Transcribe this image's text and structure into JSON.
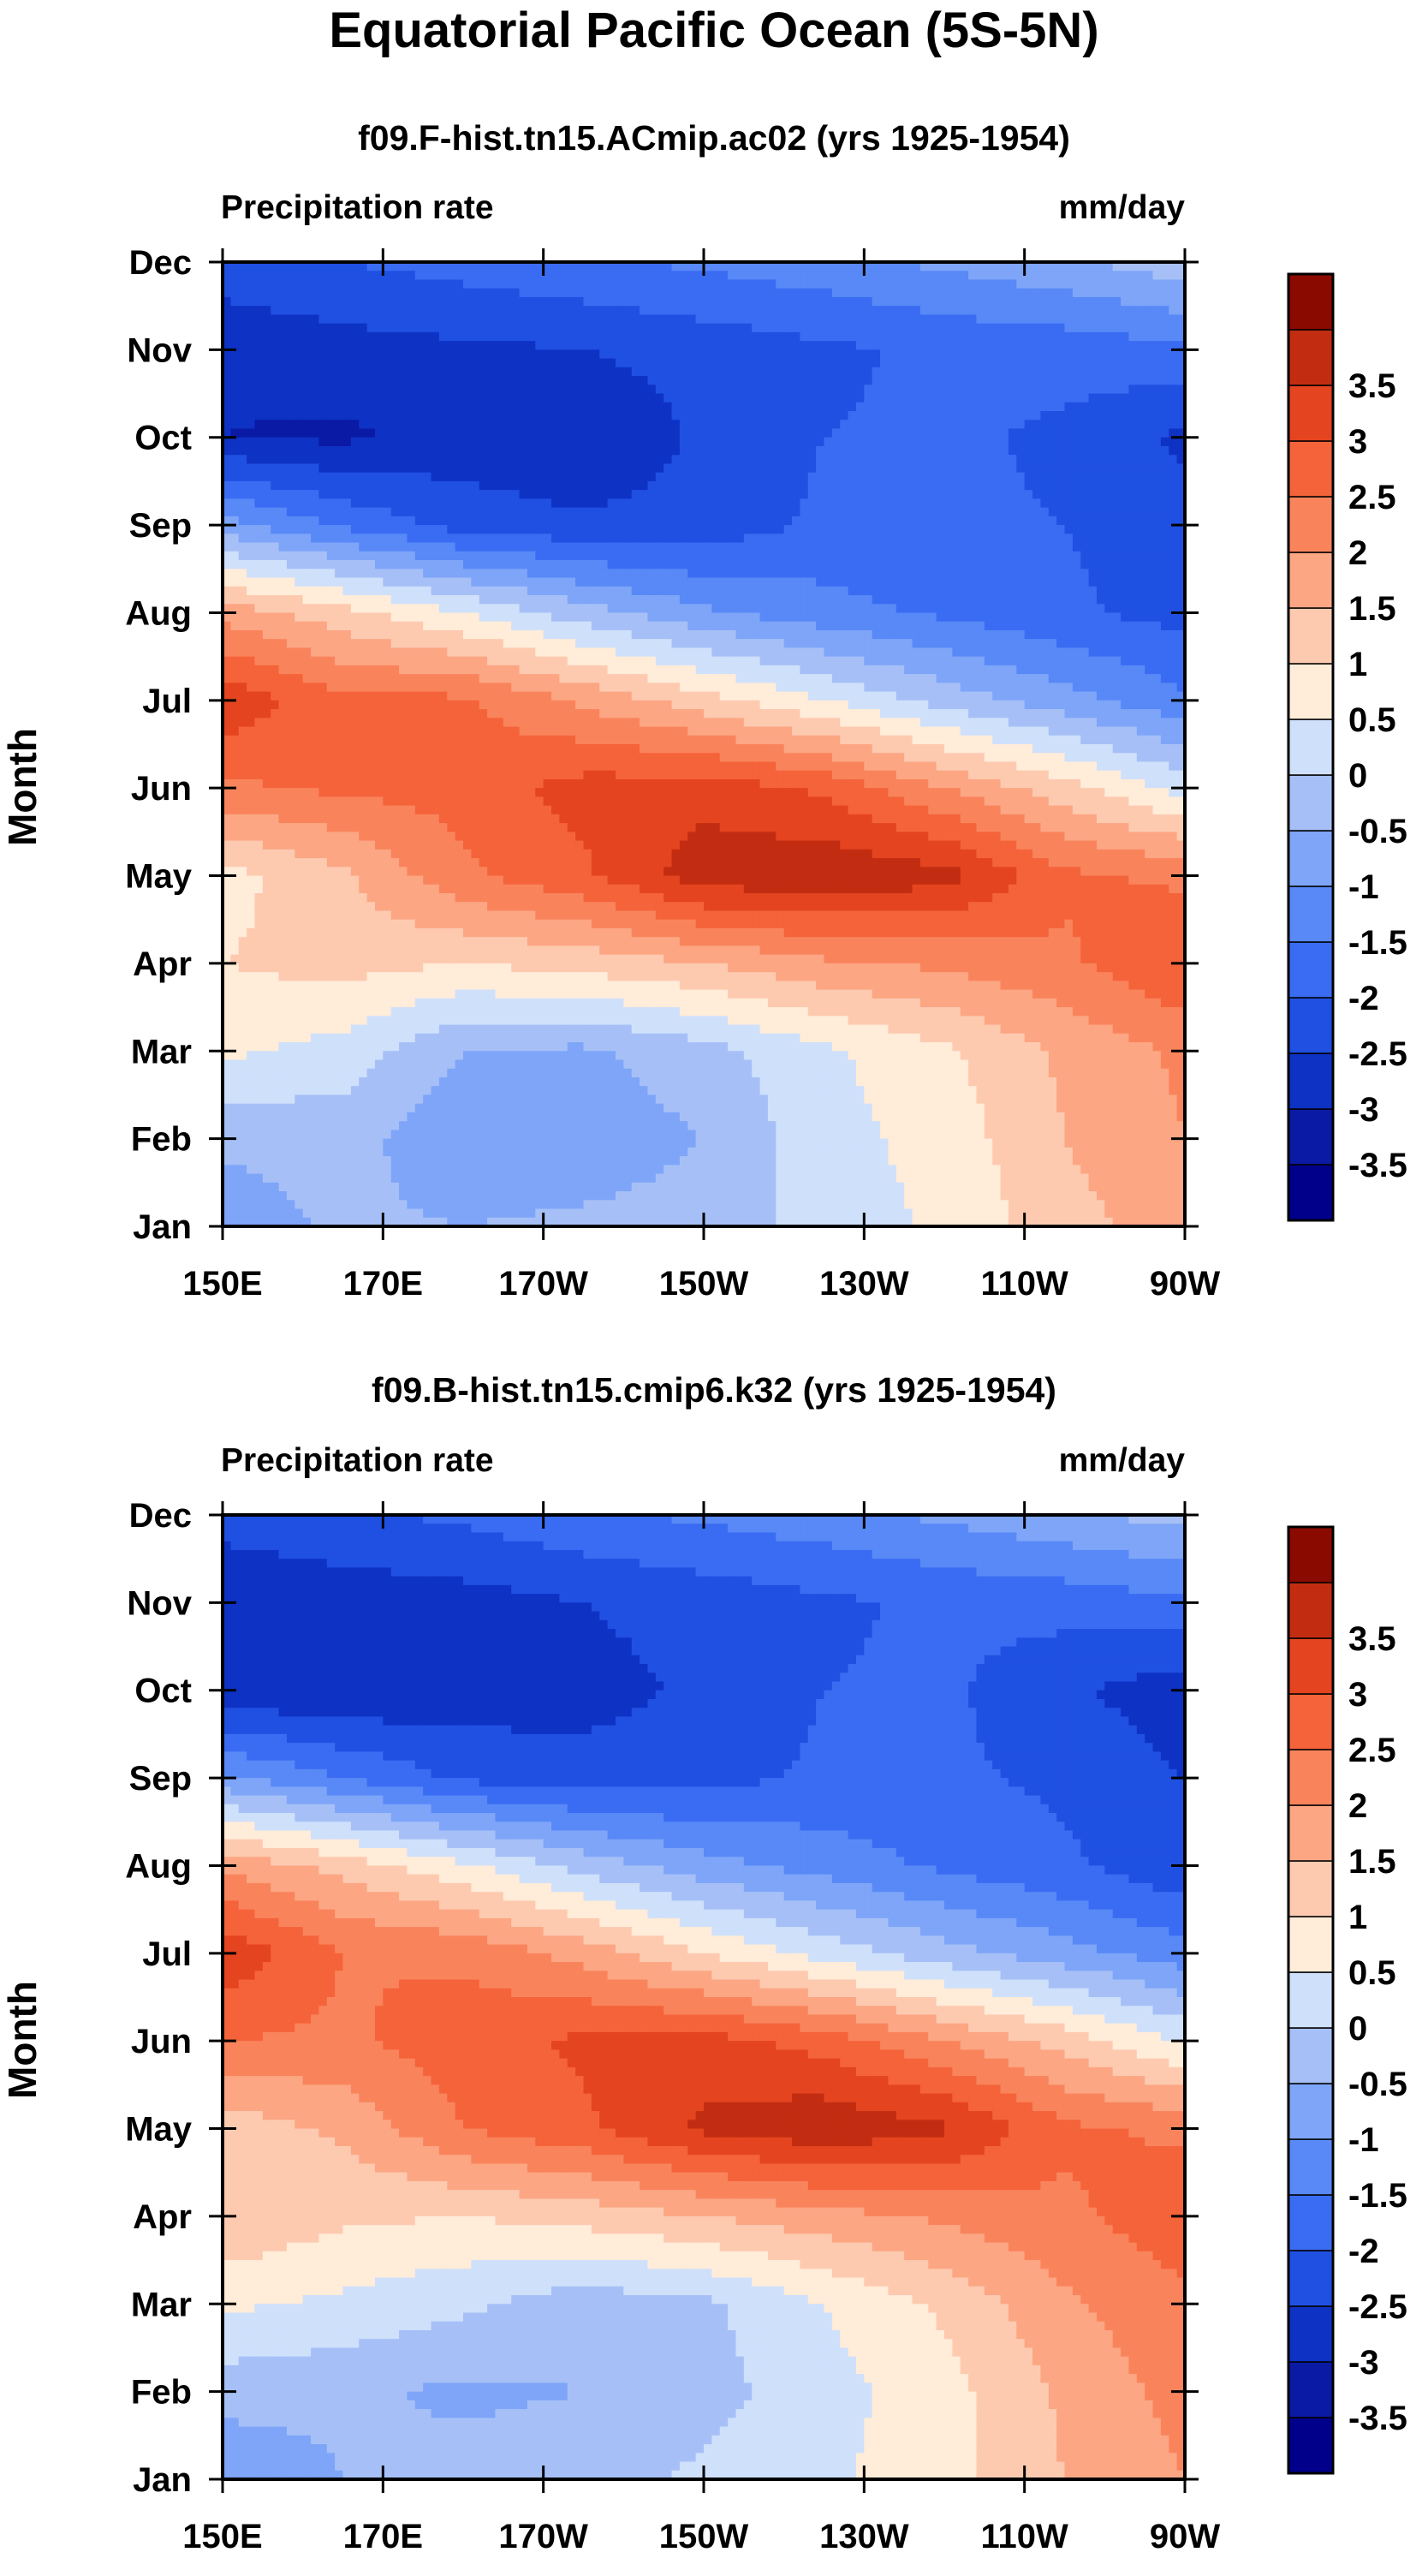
{
  "figure": {
    "title": "Equatorial Pacific Ocean (5S-5N)"
  },
  "colors": {
    "scale": [
      "#00008b",
      "#0a1aa5",
      "#0e32c4",
      "#1f50e2",
      "#3a6cf3",
      "#5889f7",
      "#7ea5f8",
      "#a6c0f7",
      "#cfe0fb",
      "#ffecd9",
      "#fdcab0",
      "#fca684",
      "#f9845c",
      "#f5633a",
      "#e4441f",
      "#c22d12",
      "#8b0a00"
    ]
  },
  "chart_data": [
    {
      "type": "heatmap",
      "title": "f09.F-hist.tn15.ACmip.ac02 (yrs 1925-1954)",
      "left_label": "Precipitation rate",
      "right_label": "mm/day",
      "ylabel": "Month",
      "x_ticks": [
        "150E",
        "170E",
        "170W",
        "150W",
        "130W",
        "110W",
        "90W"
      ],
      "x_lon": [
        150,
        170,
        190,
        210,
        230,
        250,
        270
      ],
      "y_ticks": [
        "Jan",
        "Feb",
        "Mar",
        "Apr",
        "May",
        "Jun",
        "Jul",
        "Aug",
        "Sep",
        "Oct",
        "Nov",
        "Dec"
      ],
      "xlim": [
        150,
        270
      ],
      "ylim": [
        1,
        12
      ],
      "colorbar_labels": [
        "-3.5",
        "-3",
        "-2.5",
        "-2",
        "-1.5",
        "-1",
        "-0.5",
        "0",
        "0.5",
        "1",
        "1.5",
        "2",
        "2.5",
        "3",
        "3.5"
      ],
      "colorbar_levels": [
        -3.5,
        -3,
        -2.5,
        -2,
        -1.5,
        -1,
        -0.5,
        0,
        0.5,
        1,
        1.5,
        2,
        2.5,
        3,
        3.5
      ],
      "x": [
        150,
        165,
        180,
        195,
        210,
        225,
        240,
        255,
        270
      ],
      "y": [
        1,
        2,
        3,
        4,
        5,
        6,
        7,
        8,
        9,
        10,
        11,
        12
      ],
      "z": [
        [
          -0.8,
          -0.4,
          -0.5,
          -0.4,
          -0.3,
          0.2,
          0.6,
          1.3,
          1.8
        ],
        [
          -0.4,
          -0.3,
          -0.9,
          -0.8,
          -0.5,
          0.3,
          0.7,
          1.5,
          2.0
        ],
        [
          0.6,
          0.3,
          -0.5,
          -0.6,
          -0.2,
          0.4,
          0.9,
          1.6,
          2.1
        ],
        [
          1.0,
          1.2,
          1.0,
          1.2,
          1.5,
          1.9,
          2.1,
          2.4,
          3.0
        ],
        [
          0.8,
          1.4,
          2.4,
          2.9,
          3.8,
          3.9,
          3.7,
          2.6,
          2.4
        ],
        [
          2.4,
          2.6,
          2.7,
          3.2,
          3.3,
          2.9,
          2.0,
          1.2,
          0.3
        ],
        [
          3.4,
          2.6,
          2.6,
          1.9,
          1.2,
          0.5,
          -0.2,
          -0.8,
          -1.4
        ],
        [
          1.8,
          1.2,
          0.5,
          -0.3,
          -0.9,
          -1.3,
          -1.6,
          -1.9,
          -2.2
        ],
        [
          -0.8,
          -1.6,
          -2.2,
          -2.4,
          -2.3,
          -1.9,
          -1.9,
          -2.0,
          -2.3
        ],
        [
          -3.0,
          -3.1,
          -2.8,
          -3.0,
          -2.4,
          -2.0,
          -1.9,
          -2.1,
          -2.6
        ],
        [
          -2.9,
          -2.7,
          -2.6,
          -2.5,
          -2.3,
          -2.1,
          -1.9,
          -1.8,
          -1.6
        ],
        [
          -2.2,
          -2.0,
          -1.8,
          -1.6,
          -1.4,
          -1.2,
          -0.9,
          -0.6,
          -0.2
        ]
      ]
    },
    {
      "type": "heatmap",
      "title": "f09.B-hist.tn15.cmip6.k32 (yrs 1925-1954)",
      "left_label": "Precipitation rate",
      "right_label": "mm/day",
      "ylabel": "Month",
      "x_ticks": [
        "150E",
        "170E",
        "170W",
        "150W",
        "130W",
        "110W",
        "90W"
      ],
      "x_lon": [
        150,
        170,
        190,
        210,
        230,
        250,
        270
      ],
      "y_ticks": [
        "Jan",
        "Feb",
        "Mar",
        "Apr",
        "May",
        "Jun",
        "Jul",
        "Aug",
        "Sep",
        "Oct",
        "Nov",
        "Dec"
      ],
      "xlim": [
        150,
        270
      ],
      "ylim": [
        1,
        12
      ],
      "colorbar_labels": [
        "-3.5",
        "-3",
        "-2.5",
        "-2",
        "-1.5",
        "-1",
        "-0.5",
        "0",
        "0.5",
        "1",
        "1.5",
        "2",
        "2.5",
        "3",
        "3.5"
      ],
      "colorbar_levels": [
        -3.5,
        -3,
        -2.5,
        -2,
        -1.5,
        -1,
        -0.5,
        0,
        0.5,
        1,
        1.5,
        2,
        2.5,
        3,
        3.5
      ],
      "x": [
        150,
        165,
        180,
        195,
        210,
        225,
        240,
        255,
        270
      ],
      "y": [
        1,
        2,
        3,
        4,
        5,
        6,
        7,
        8,
        9,
        10,
        11,
        12
      ],
      "z": [
        [
          -0.9,
          -0.5,
          -0.3,
          -0.2,
          0.1,
          0.4,
          0.8,
          1.5,
          2.0
        ],
        [
          -0.3,
          -0.4,
          -0.6,
          -0.5,
          -0.2,
          0.3,
          0.8,
          1.6,
          2.2
        ],
        [
          0.6,
          0.4,
          0.1,
          -0.3,
          -0.1,
          0.5,
          1.1,
          1.9,
          2.4
        ],
        [
          1.5,
          1.1,
          1.0,
          1.2,
          1.5,
          1.8,
          2.1,
          2.4,
          2.8
        ],
        [
          1.2,
          1.6,
          2.5,
          2.9,
          3.6,
          3.9,
          3.6,
          2.6,
          2.4
        ],
        [
          2.5,
          2.4,
          2.8,
          3.1,
          3.2,
          2.8,
          2.0,
          1.3,
          0.4
        ],
        [
          3.4,
          2.5,
          2.4,
          1.8,
          1.0,
          0.3,
          -0.3,
          -0.8,
          -1.3
        ],
        [
          1.9,
          1.3,
          0.6,
          -0.2,
          -0.8,
          -1.2,
          -1.6,
          -1.9,
          -2.4
        ],
        [
          -0.9,
          -1.5,
          -2.1,
          -2.3,
          -2.2,
          -1.9,
          -1.9,
          -2.1,
          -2.5
        ],
        [
          -2.9,
          -3.0,
          -2.8,
          -2.7,
          -2.4,
          -2.0,
          -1.9,
          -2.4,
          -2.8
        ],
        [
          -2.9,
          -2.8,
          -2.7,
          -2.5,
          -2.3,
          -2.1,
          -1.9,
          -1.8,
          -1.6
        ],
        [
          -2.3,
          -2.1,
          -1.9,
          -1.6,
          -1.4,
          -1.2,
          -0.9,
          -0.6,
          -0.3
        ]
      ]
    }
  ]
}
